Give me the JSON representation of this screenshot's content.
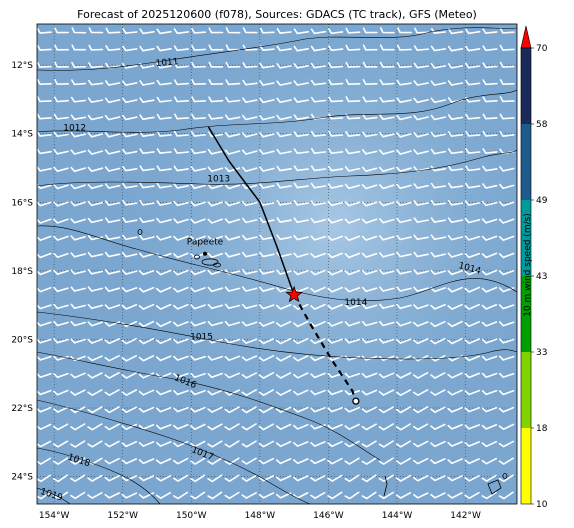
{
  "title": "Forecast of 2025120600 (f078), Sources: GDACS (TC track), GFS (Meteo)",
  "map": {
    "lon_range": [
      -154.5,
      -140.5
    ],
    "lat_range": [
      -24.8,
      -10.8
    ],
    "lon_ticks": [
      {
        "value": -154,
        "label": "154°W"
      },
      {
        "value": -152,
        "label": "152°W"
      },
      {
        "value": -150,
        "label": "150°W"
      },
      {
        "value": -148,
        "label": "148°W"
      },
      {
        "value": -146,
        "label": "146°W"
      },
      {
        "value": -144,
        "label": "144°W"
      },
      {
        "value": -142,
        "label": "142°W"
      }
    ],
    "lat_ticks": [
      {
        "value": -12,
        "label": "12°S"
      },
      {
        "value": -14,
        "label": "14°S"
      },
      {
        "value": -16,
        "label": "16°S"
      },
      {
        "value": -18,
        "label": "18°S"
      },
      {
        "value": -20,
        "label": "20°S"
      },
      {
        "value": -22,
        "label": "22°S"
      },
      {
        "value": -24,
        "label": "24°S"
      }
    ],
    "place": {
      "name": "Papeete",
      "lon": -149.6,
      "lat": -17.5
    },
    "isobars": [
      {
        "label": "1011",
        "lon": -150.7,
        "lat": -12.0,
        "angle": -5
      },
      {
        "label": "1012",
        "lon": -153.4,
        "lat": -13.9,
        "angle": 0
      },
      {
        "label": "1013",
        "lon": -149.2,
        "lat": -15.4,
        "angle": 0
      },
      {
        "label": "1014",
        "lon": -141.9,
        "lat": -18.0,
        "angle": 15
      },
      {
        "label": "1014",
        "lon": -145.2,
        "lat": -19.0,
        "angle": 0
      },
      {
        "label": "1015",
        "lon": -149.7,
        "lat": -20.0,
        "angle": 0
      },
      {
        "label": "1016",
        "lon": -150.2,
        "lat": -21.3,
        "angle": 22
      },
      {
        "label": "1017",
        "lon": -149.7,
        "lat": -23.4,
        "angle": 22
      },
      {
        "label": "1018",
        "lon": -153.3,
        "lat": -23.6,
        "angle": 18
      },
      {
        "label": "1019",
        "lon": -154.1,
        "lat": -24.6,
        "angle": 18
      }
    ],
    "track_past": [
      [
        -149.5,
        -13.8
      ],
      [
        -148.9,
        -14.8
      ],
      [
        -148.0,
        -16.0
      ],
      [
        -147.5,
        -17.3
      ],
      [
        -147.0,
        -18.7
      ]
    ],
    "track_forecast": [
      [
        -147.0,
        -18.7
      ],
      [
        -146.5,
        -19.6
      ],
      [
        -145.9,
        -20.6
      ],
      [
        -145.3,
        -21.5
      ],
      [
        -145.2,
        -21.8
      ]
    ],
    "storm_position": {
      "lon": -147.0,
      "lat": -18.7
    },
    "storm_end": {
      "lon": -145.2,
      "lat": -21.8
    }
  },
  "colorbar": {
    "label": "10 m wind speed (m/s)",
    "levels": [
      10,
      18,
      33,
      43,
      49,
      58,
      70
    ],
    "colors": [
      "#ffff00",
      "#7fd400",
      "#00a000",
      "#009a9a",
      "#1f5a8c",
      "#1a2a5a"
    ],
    "extend_color": "#ff0000"
  },
  "colors": {
    "ocean": "#7aa6cf",
    "ocean_light": "#a6c6e2",
    "star": "#ff0000"
  }
}
